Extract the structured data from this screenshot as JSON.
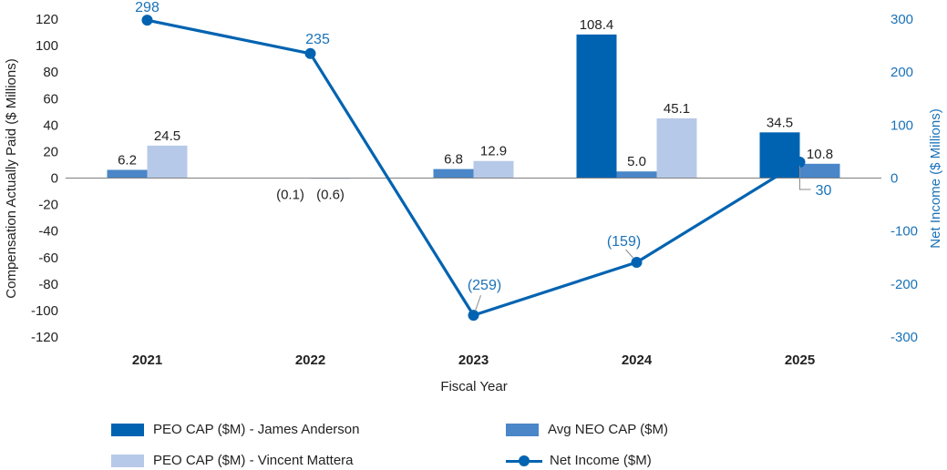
{
  "chart_data": {
    "type": "bar",
    "categories": [
      "2021",
      "2022",
      "2023",
      "2024",
      "2025"
    ],
    "xlabel": "Fiscal Year",
    "ylabel": "Compensation Actually Paid ($ Millions)",
    "y2label": "Net Income ($ Millions)",
    "ylim": [
      -120,
      120
    ],
    "y2lim": [
      -300,
      300
    ],
    "yticks": [
      -120,
      -100,
      -80,
      -60,
      -40,
      -20,
      0,
      20,
      40,
      60,
      80,
      100,
      120
    ],
    "y2ticks": [
      -300,
      -200,
      -100,
      0,
      100,
      200,
      300
    ],
    "legend_position": "bottom",
    "grid": false,
    "series": [
      {
        "name": "PEO CAP ($M) - James Anderson",
        "type": "bar",
        "axis": "left",
        "color": "#0063b1",
        "values": [
          null,
          null,
          null,
          108.4,
          34.5
        ],
        "labels": [
          "",
          "",
          "",
          "108.4",
          "34.5"
        ]
      },
      {
        "name": "Avg NEO CAP ($M)",
        "type": "bar",
        "axis": "left",
        "color": "#4a86c8",
        "values": [
          6.2,
          -0.1,
          6.8,
          5.0,
          10.8
        ],
        "labels": [
          "6.2",
          "(0.1)",
          "6.8",
          "5.0",
          "10.8"
        ]
      },
      {
        "name": "PEO CAP ($M) - Vincent Mattera",
        "type": "bar",
        "axis": "left",
        "color": "#b7c9e8",
        "values": [
          24.5,
          -0.6,
          12.9,
          45.1,
          null
        ],
        "labels": [
          "24.5",
          "(0.6)",
          "12.9",
          "45.1",
          ""
        ]
      },
      {
        "name": "Net Income ($M)",
        "type": "line",
        "axis": "right",
        "color": "#0063b1",
        "values": [
          298,
          235,
          -259,
          -159,
          30
        ],
        "labels": [
          "298",
          "235",
          "(259)",
          "(159)",
          "30"
        ]
      }
    ]
  }
}
